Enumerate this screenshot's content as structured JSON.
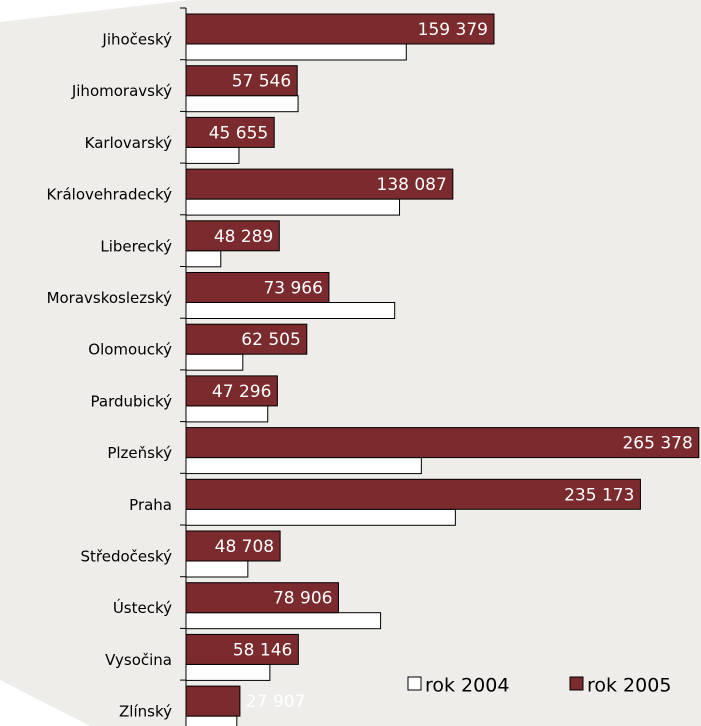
{
  "chart_data": {
    "type": "bar",
    "orientation": "horizontal",
    "categories": [
      "Jihočeský",
      "Jihomoravský",
      "Karlovarský",
      "Královehradecký",
      "Liberecký",
      "Moravskoslezský",
      "Olomoucký",
      "Pardubický",
      "Plzeňský",
      "Praha",
      "Středočeský",
      "Ústecký",
      "Vysočina",
      "Zlínský"
    ],
    "series": [
      {
        "name": "rok 2004",
        "color": "#ffffff",
        "values": [
          114000,
          58000,
          27400,
          110500,
          18000,
          108000,
          29400,
          42300,
          121800,
          139400,
          32000,
          100700,
          43400,
          26300
        ]
      },
      {
        "name": "rok 2005",
        "color": "#7b2a2e",
        "values": [
          159379,
          57546,
          45655,
          138087,
          48289,
          73966,
          62505,
          47296,
          265378,
          235173,
          48708,
          78906,
          58146,
          27907
        ],
        "value_labels": [
          "159 379",
          "57 546",
          "45 655",
          "138 087",
          "48 289",
          "73 966",
          "62 505",
          "47 296",
          "265 378",
          "235 173",
          "48 708",
          "78 906",
          "58 146",
          "27 907"
        ]
      }
    ],
    "xlim": [
      0,
      266000
    ],
    "legend": "bottom-right"
  }
}
